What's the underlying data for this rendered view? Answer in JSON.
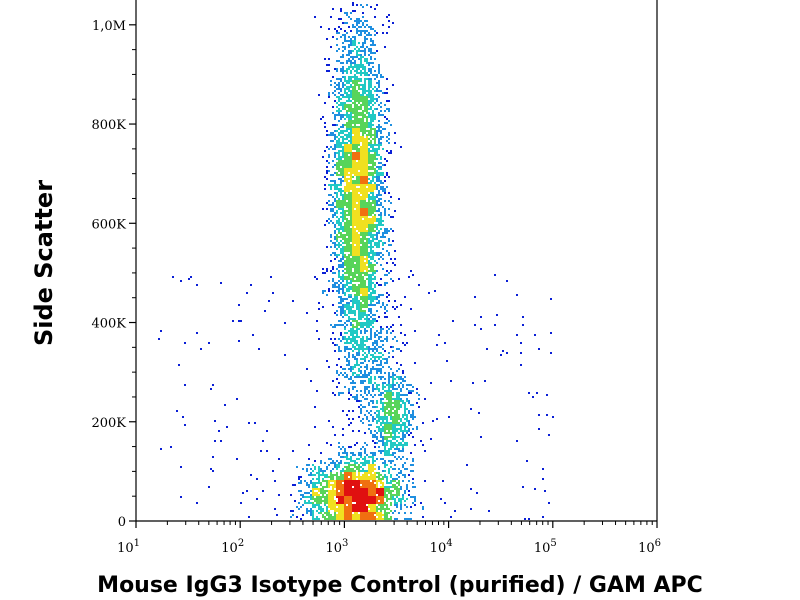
{
  "chart_data": {
    "type": "scatter",
    "title": "",
    "xlabel": "Mouse IgG3 Isotype Control (purified) / GAM APC",
    "ylabel": "Side Scatter",
    "x_scale": "log",
    "xlim": [
      10,
      1000000
    ],
    "ylim": [
      0,
      1050000
    ],
    "x_ticks": [
      {
        "value": 10,
        "base": "10",
        "exp": "1"
      },
      {
        "value": 100,
        "base": "10",
        "exp": "2"
      },
      {
        "value": 1000,
        "base": "10",
        "exp": "3"
      },
      {
        "value": 10000,
        "base": "10",
        "exp": "4"
      },
      {
        "value": 100000,
        "base": "10",
        "exp": "5"
      },
      {
        "value": 1000000,
        "base": "10",
        "exp": "6"
      }
    ],
    "y_ticks": [
      {
        "value": 0,
        "label": "0"
      },
      {
        "value": 200000,
        "label": "200K"
      },
      {
        "value": 400000,
        "label": "400K"
      },
      {
        "value": 600000,
        "label": "600K"
      },
      {
        "value": 800000,
        "label": "800K"
      },
      {
        "value": 1000000,
        "label": "1,0M"
      }
    ],
    "grid": false,
    "legend": "none",
    "density_colormap": [
      "#0b1fd6",
      "#1f8fe0",
      "#22c9c4",
      "#58d45a",
      "#f0e020",
      "#f07010",
      "#e01010"
    ],
    "populations": [
      {
        "x_log_center": 3.12,
        "x_log_sd": 0.12,
        "y_center": 660000,
        "y_sd": 170000,
        "points": 5200,
        "peak_color": "#58d45a"
      },
      {
        "x_log_center": 3.1,
        "x_log_sd": 0.22,
        "y_center": 55000,
        "y_sd": 35000,
        "points": 3600,
        "peak_color": "#e01010"
      },
      {
        "x_log_center": 3.45,
        "x_log_sd": 0.1,
        "y_center": 210000,
        "y_sd": 45000,
        "points": 700,
        "peak_color": "#22c9c4"
      },
      {
        "x_log_center": 3.25,
        "x_log_sd": 0.14,
        "y_center": 340000,
        "y_sd": 60000,
        "points": 350,
        "peak_color": "#1f8fe0"
      }
    ]
  }
}
